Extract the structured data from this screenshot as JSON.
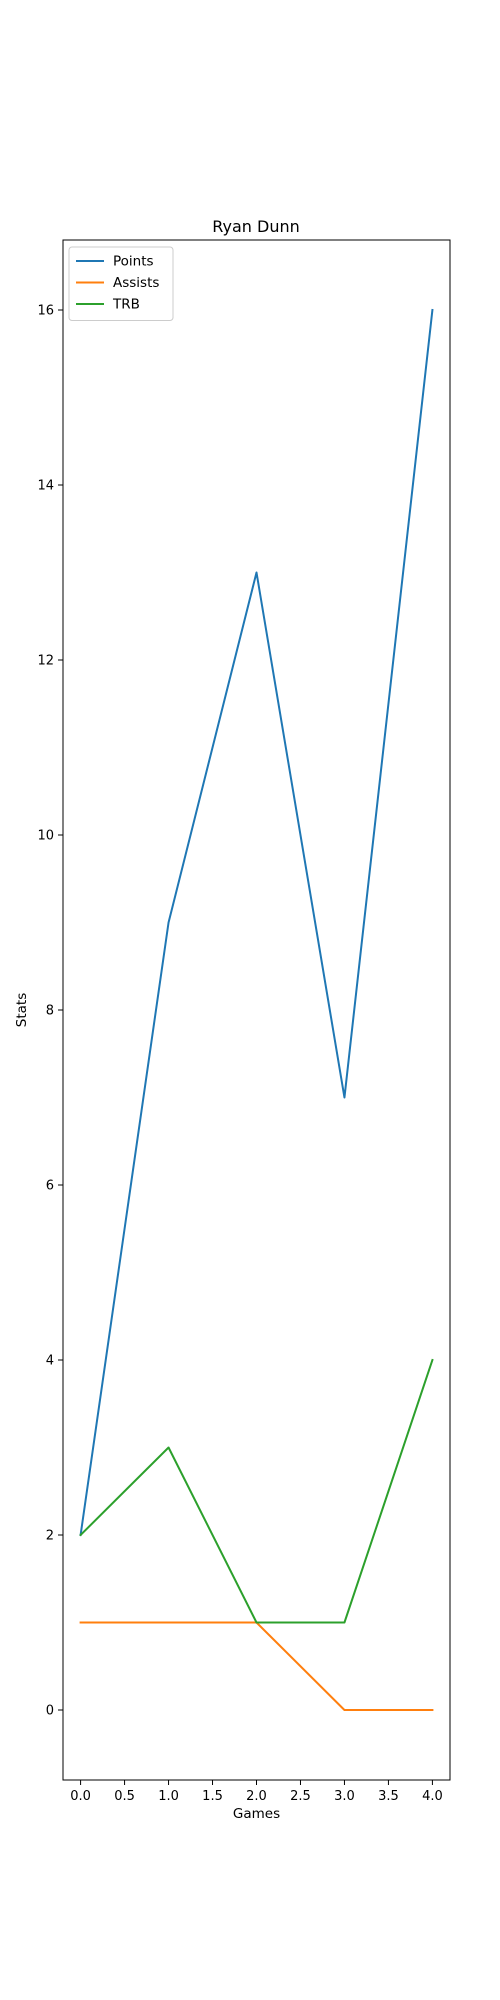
{
  "chart_data": {
    "type": "line",
    "title": "Ryan Dunn",
    "xlabel": "Games",
    "ylabel": "Stats",
    "x": [
      0,
      1,
      2,
      3,
      4
    ],
    "xlim": [
      -0.2,
      4.2
    ],
    "ylim": [
      -0.8,
      16.8
    ],
    "xticks": [
      "0.0",
      "0.5",
      "1.0",
      "1.5",
      "2.0",
      "2.5",
      "3.0",
      "3.5",
      "4.0"
    ],
    "yticks": [
      "0",
      "2",
      "4",
      "6",
      "8",
      "10",
      "12",
      "14",
      "16"
    ],
    "grid": false,
    "legend_position": "upper-left",
    "series": [
      {
        "name": "Points",
        "color": "#1f77b4",
        "values": [
          2,
          9,
          13,
          7,
          16
        ]
      },
      {
        "name": "Assists",
        "color": "#ff7f0e",
        "values": [
          1,
          1,
          1,
          0,
          0
        ]
      },
      {
        "name": "TRB",
        "color": "#2ca02c",
        "values": [
          2,
          3,
          1,
          1,
          4
        ]
      }
    ]
  }
}
